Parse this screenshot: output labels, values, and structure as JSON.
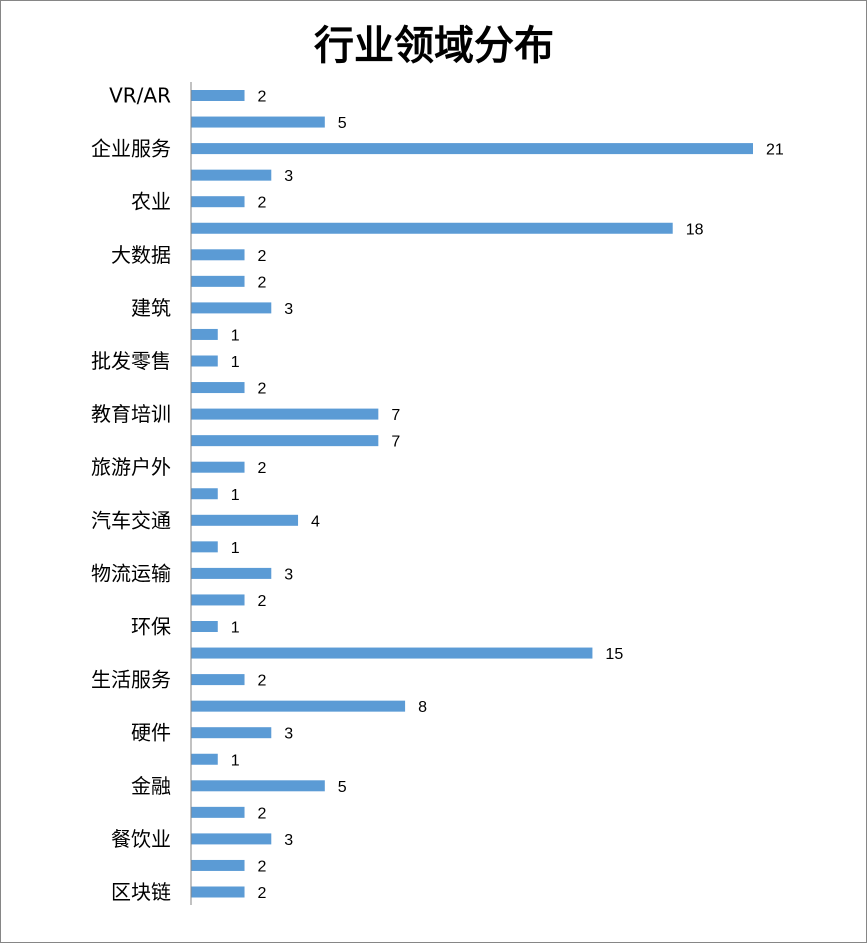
{
  "chart_data": {
    "type": "bar",
    "orientation": "horizontal",
    "title": "行业领域分布",
    "categories": [
      "VR/AR",
      "",
      "企业服务",
      "",
      "农业",
      "",
      "大数据",
      "",
      "建筑",
      "",
      "批发零售",
      "",
      "教育培训",
      "",
      "旅游户外",
      "",
      "汽车交通",
      "",
      "物流运输",
      "",
      "环保",
      "",
      "生活服务",
      "",
      "硬件",
      "",
      "金融",
      "",
      "餐饮业",
      "",
      "区块链"
    ],
    "values": [
      2,
      5,
      21,
      3,
      2,
      18,
      2,
      2,
      3,
      1,
      1,
      2,
      7,
      7,
      2,
      1,
      4,
      1,
      3,
      2,
      1,
      15,
      2,
      8,
      3,
      1,
      5,
      2,
      3,
      2,
      2
    ],
    "xlim": [
      0,
      21
    ],
    "grid": false,
    "legend": "none",
    "bar_color": "#5B9BD5",
    "axis_color": "#868686"
  }
}
